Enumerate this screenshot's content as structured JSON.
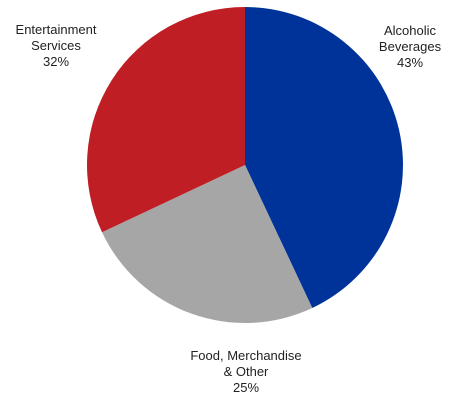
{
  "chart_data": {
    "type": "pie",
    "title": "",
    "slices": [
      {
        "label_lines": [
          "Alcoholic",
          "Beverages"
        ],
        "value": 43,
        "value_text": "43%",
        "color": "#003399"
      },
      {
        "label_lines": [
          "Food, Merchandise",
          "& Other"
        ],
        "value": 25,
        "value_text": "25%",
        "color": "#a6a6a6"
      },
      {
        "label_lines": [
          "Entertainment",
          "Services"
        ],
        "value": 32,
        "value_text": "32%",
        "color": "#bf1e24"
      }
    ]
  }
}
